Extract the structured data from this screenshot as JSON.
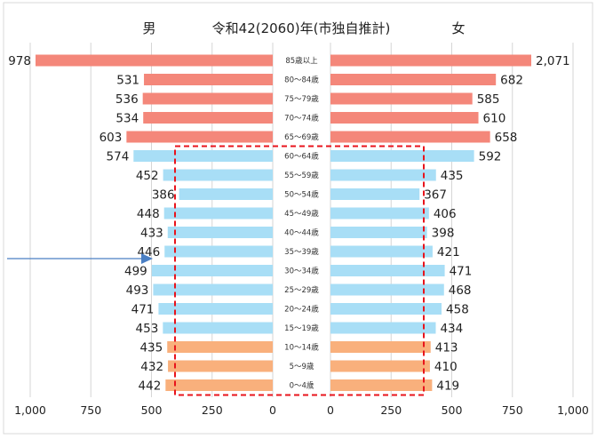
{
  "chart_data": {
    "type": "bar",
    "title": "令和42(2060)年(市独自推計)",
    "left_label": "男",
    "right_label": "女",
    "categories": [
      "85歳以上",
      "80～84歳",
      "75～79歳",
      "70～74歳",
      "65～69歳",
      "60～64歳",
      "55～59歳",
      "50～54歳",
      "45～49歳",
      "40～44歳",
      "35～39歳",
      "30～34歳",
      "25～29歳",
      "20～24歳",
      "15～19歳",
      "10～14歳",
      "5～9歳",
      "0～4歳"
    ],
    "series": [
      {
        "name": "男",
        "values": [
          978,
          531,
          536,
          534,
          603,
          574,
          452,
          386,
          448,
          433,
          446,
          499,
          493,
          471,
          453,
          435,
          432,
          442
        ]
      },
      {
        "name": "女",
        "values": [
          2071,
          682,
          585,
          610,
          658,
          592,
          435,
          367,
          406,
          398,
          421,
          471,
          468,
          458,
          434,
          413,
          410,
          419
        ]
      }
    ],
    "left_ticks": [
      "1,000",
      "750",
      "500",
      "250",
      "0"
    ],
    "right_ticks": [
      "0",
      "250",
      "500",
      "750",
      "1,000"
    ],
    "axis_range": [
      0,
      1000
    ],
    "grid": true,
    "colors": {
      "elderly": "#f4877a",
      "working": "#a8def6",
      "young": "#f9b07c",
      "grid": "#d6d6d6",
      "highlight_box": "#e8141c",
      "arrow": "#4a7fc4"
    },
    "groups": {
      "elderly": [
        0,
        4
      ],
      "working": [
        5,
        14
      ],
      "young": [
        15,
        17
      ]
    },
    "highlight_range": [
      5,
      17
    ]
  }
}
